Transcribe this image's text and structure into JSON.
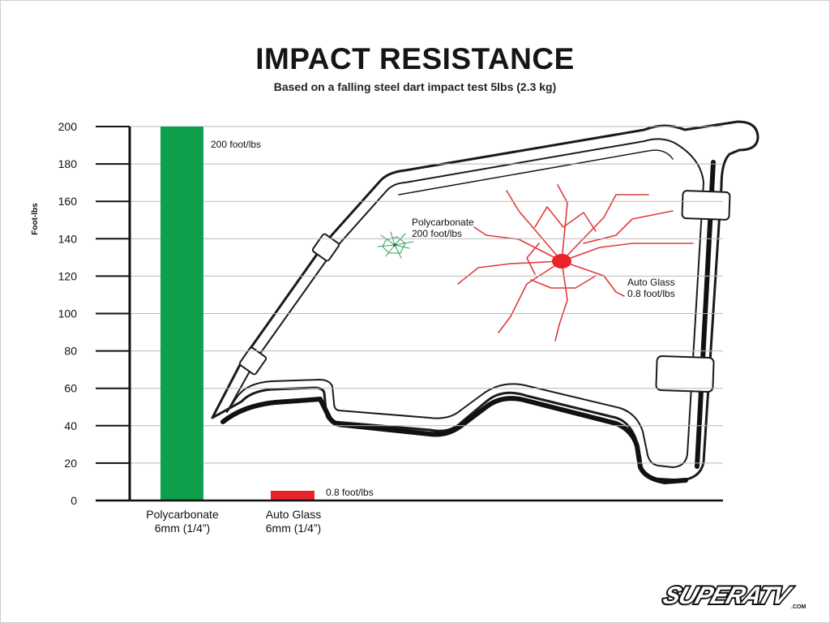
{
  "chart_data": {
    "type": "bar",
    "title": "IMPACT RESISTANCE",
    "subtitle": "Based on a falling steel dart impact test 5lbs (2.3 kg)",
    "ylabel": "Foot-lbs",
    "xlabel": "",
    "ylim": [
      0,
      200
    ],
    "yticks": [
      0,
      20,
      40,
      60,
      80,
      100,
      120,
      140,
      160,
      180,
      200
    ],
    "grid": true,
    "categories": [
      {
        "line1": "Polycarbonate",
        "line2": "6mm (1/4”)"
      },
      {
        "line1": "Auto Glass",
        "line2": "6mm (1/4”)"
      }
    ],
    "values": [
      200,
      0.8
    ],
    "data_labels": [
      "200 foot/lbs",
      "0.8 foot/lbs"
    ],
    "colors": [
      "#0ea04b",
      "#e8232a"
    ],
    "annotations": [
      {
        "line1": "Polycarbonate",
        "line2": "200 foot/lbs"
      },
      {
        "line1": "Auto Glass",
        "line2": "0.8 foot/lbs"
      }
    ]
  },
  "logo": {
    "text": "SUPERATV",
    "suffix": ".COM"
  }
}
